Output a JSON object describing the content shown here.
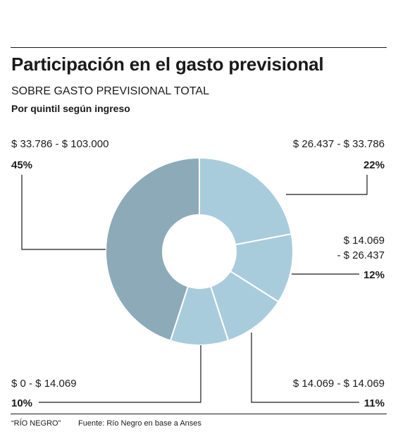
{
  "header": {
    "title": "Participación en el gasto previsional",
    "subtitle": "SOBRE GASTO PREVISIONAL TOTAL",
    "subtitle2": "Por quintil según ingreso"
  },
  "chart_data": {
    "type": "pie",
    "donut": true,
    "slices": [
      {
        "label": "$ 26.437 - $ 33.786",
        "label_lines": [
          "$ 26.437 - $ 33.786"
        ],
        "value": 22,
        "pct_label": "22%",
        "color": "#a9ccdd"
      },
      {
        "label": "$ 14.069 - $ 26.437",
        "label_lines": [
          "$ 14.069",
          "- $ 26.437"
        ],
        "value": 12,
        "pct_label": "12%",
        "color": "#a9ccdd"
      },
      {
        "label": "$ 14.069 - $ 14.069",
        "label_lines": [
          "$ 14.069 - $ 14.069"
        ],
        "value": 11,
        "pct_label": "11%",
        "color": "#a9ccdd"
      },
      {
        "label": "$ 0 - $ 14.069",
        "label_lines": [
          "$ 0 - $ 14.069"
        ],
        "value": 10,
        "pct_label": "10%",
        "color": "#a9ccdd"
      },
      {
        "label": "$ 33.786 - $ 103.000",
        "label_lines": [
          "$ 33.786 - $ 103.000"
        ],
        "value": 45,
        "pct_label": "45%",
        "color": "#8daab9"
      }
    ]
  },
  "footer": {
    "brand": "“RÍO NEGRO”",
    "source": "Fuente: Río Negro en base a Anses"
  }
}
